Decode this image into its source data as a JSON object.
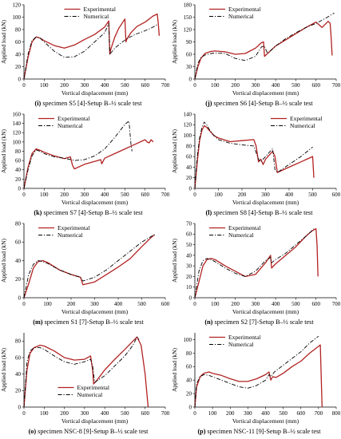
{
  "figure": {
    "legend_experimental": "Experimental",
    "legend_numerical": "Numerical",
    "colors": {
      "experimental": "#b22222",
      "numerical": "#000000"
    }
  },
  "chart_data": [
    {
      "type": "line",
      "letter": "(i)",
      "caption": " specimen S5 [4]-Setup B–½ scale test",
      "xlabel": "Vertical displacement (mm)",
      "ylabel": "Applied load (kN)",
      "xlim": [
        0,
        700
      ],
      "ylim": [
        0,
        120
      ],
      "xticks": [
        0,
        100,
        200,
        300,
        400,
        500,
        600,
        700
      ],
      "yticks": [
        0,
        20,
        40,
        60,
        80,
        100,
        120
      ],
      "legend": "top-center",
      "series": [
        {
          "name": "Experimental",
          "style": "solid",
          "x": [
            0,
            20,
            40,
            60,
            80,
            100,
            150,
            200,
            250,
            300,
            350,
            400,
            420,
            425,
            430,
            450,
            470,
            490,
            500,
            505,
            510,
            530,
            560,
            600,
            640,
            660,
            665,
            670
          ],
          "y": [
            0,
            35,
            60,
            68,
            66,
            62,
            54,
            50,
            55,
            64,
            72,
            84,
            94,
            40,
            48,
            68,
            82,
            92,
            97,
            60,
            65,
            75,
            85,
            92,
            102,
            105,
            90,
            70
          ]
        },
        {
          "name": "Numerical",
          "style": "dashdot",
          "x": [
            0,
            20,
            40,
            60,
            80,
            100,
            150,
            200,
            250,
            300,
            350,
            400,
            420,
            425,
            430,
            450,
            480,
            500,
            520,
            550,
            600,
            640,
            660
          ],
          "y": [
            0,
            40,
            62,
            68,
            66,
            60,
            45,
            35,
            36,
            45,
            60,
            75,
            90,
            40,
            42,
            50,
            58,
            63,
            67,
            72,
            78,
            84,
            88
          ]
        }
      ]
    },
    {
      "type": "line",
      "letter": "(j)",
      "caption": " specimen S6 [4]-Setup B–½ scale test",
      "xlabel": "Vertical displacement (mm)",
      "ylabel": "Applied load (kN)",
      "xlim": [
        0,
        700
      ],
      "ylim": [
        0,
        180
      ],
      "xticks": [
        0,
        100,
        200,
        300,
        400,
        500,
        600,
        700
      ],
      "yticks": [
        0,
        30,
        60,
        90,
        120,
        150,
        180
      ],
      "legend": "top-left",
      "series": [
        {
          "name": "Experimental",
          "style": "solid",
          "x": [
            0,
            15,
            30,
            50,
            80,
            100,
            150,
            200,
            250,
            300,
            330,
            340,
            345,
            360,
            400,
            450,
            500,
            550,
            600,
            630,
            660,
            670,
            675,
            680
          ],
          "y": [
            0,
            30,
            50,
            62,
            67,
            68,
            66,
            60,
            62,
            75,
            88,
            90,
            55,
            62,
            80,
            95,
            110,
            125,
            138,
            125,
            140,
            135,
            100,
            57
          ]
        },
        {
          "name": "Numerical",
          "style": "dashdot",
          "x": [
            0,
            15,
            30,
            50,
            80,
            100,
            150,
            200,
            250,
            300,
            330,
            345,
            360,
            400,
            450,
            500,
            550,
            600,
            650,
            690
          ],
          "y": [
            0,
            38,
            52,
            58,
            62,
            63,
            62,
            50,
            45,
            55,
            78,
            80,
            62,
            80,
            98,
            112,
            125,
            135,
            148,
            160
          ]
        }
      ]
    },
    {
      "type": "line",
      "letter": "(k)",
      "caption": " specimen S7 [4]-Setup B–½ scale test",
      "xlabel": "Vertical displacement (mm)",
      "ylabel": "Applied load (kN)",
      "xlim": [
        0,
        700
      ],
      "ylim": [
        0,
        160
      ],
      "xticks": [
        0,
        100,
        200,
        300,
        400,
        500,
        600,
        700
      ],
      "yticks": [
        0,
        20,
        40,
        60,
        80,
        100,
        120,
        140,
        160
      ],
      "legend": "top-left",
      "series": [
        {
          "name": "Experimental",
          "style": "solid",
          "x": [
            0,
            20,
            40,
            60,
            80,
            100,
            150,
            200,
            230,
            240,
            250,
            300,
            350,
            380,
            385,
            400,
            450,
            500,
            550,
            600,
            610,
            620,
            630,
            640
          ],
          "y": [
            0,
            45,
            75,
            85,
            82,
            78,
            70,
            64,
            68,
            50,
            42,
            52,
            58,
            62,
            53,
            65,
            75,
            85,
            95,
            105,
            100,
            98,
            105,
            100
          ]
        },
        {
          "name": "Numerical",
          "style": "dashdot",
          "x": [
            0,
            20,
            40,
            60,
            80,
            100,
            150,
            200,
            250,
            300,
            350,
            400,
            450,
            500,
            520,
            530,
            535
          ],
          "y": [
            0,
            40,
            70,
            83,
            80,
            75,
            68,
            65,
            60,
            62,
            70,
            85,
            110,
            138,
            145,
            95,
            80
          ]
        }
      ]
    },
    {
      "type": "line",
      "letter": "(l)",
      "caption": " specimen S8 [4]-Setup B–½ scale test",
      "xlabel": "Vertical displacement (mm)",
      "ylabel": "Applied load (kN)",
      "xlim": [
        0,
        600
      ],
      "ylim": [
        0,
        140
      ],
      "xticks": [
        0,
        100,
        200,
        300,
        400,
        500,
        600
      ],
      "yticks": [
        0,
        20,
        40,
        60,
        80,
        100,
        120,
        140
      ],
      "legend": "top-right",
      "series": [
        {
          "name": "Experimental",
          "style": "solid",
          "x": [
            0,
            10,
            20,
            30,
            40,
            50,
            60,
            80,
            100,
            150,
            200,
            250,
            260,
            270,
            280,
            290,
            300,
            320,
            330,
            340,
            350,
            400,
            450,
            500,
            505
          ],
          "y": [
            0,
            50,
            90,
            110,
            118,
            115,
            110,
            100,
            95,
            88,
            90,
            92,
            80,
            50,
            55,
            45,
            55,
            65,
            70,
            60,
            30,
            40,
            50,
            60,
            20
          ]
        },
        {
          "name": "Numerical",
          "style": "dashdot",
          "x": [
            0,
            10,
            20,
            30,
            40,
            50,
            60,
            80,
            100,
            150,
            200,
            250,
            270,
            280,
            300,
            320,
            330,
            340,
            350,
            400,
            450,
            500
          ],
          "y": [
            0,
            60,
            95,
            115,
            125,
            120,
            112,
            100,
            92,
            85,
            82,
            80,
            55,
            50,
            60,
            70,
            75,
            35,
            30,
            45,
            60,
            78
          ]
        }
      ]
    },
    {
      "type": "line",
      "letter": "(m)",
      "caption": " specimen S1 [7]-Setup B–½ scale test",
      "xlabel": "Vertical displacement (mm)",
      "ylabel": "Applied load (kN)",
      "xlim": [
        0,
        600
      ],
      "ylim": [
        0,
        80
      ],
      "xticks": [
        0,
        100,
        200,
        300,
        400,
        500,
        600
      ],
      "yticks": [
        0,
        20,
        40,
        60,
        80
      ],
      "legend": "top-left",
      "series": [
        {
          "name": "Experimental",
          "style": "solid",
          "x": [
            0,
            20,
            40,
            60,
            80,
            100,
            150,
            200,
            240,
            250,
            300,
            350,
            400,
            450,
            500,
            540,
            555
          ],
          "y": [
            0,
            15,
            32,
            39,
            40,
            38,
            30,
            25,
            22,
            14,
            17,
            25,
            33,
            42,
            55,
            65,
            68
          ]
        },
        {
          "name": "Numerical",
          "style": "dashdot",
          "x": [
            0,
            20,
            40,
            60,
            80,
            100,
            150,
            200,
            240,
            250,
            300,
            350,
            400,
            450,
            500,
            540,
            555
          ],
          "y": [
            0,
            25,
            36,
            40,
            39,
            37,
            30,
            25,
            22,
            18,
            22,
            30,
            40,
            50,
            60,
            66,
            68
          ]
        }
      ]
    },
    {
      "type": "line",
      "letter": "(n)",
      "caption": " specimen S2 [7]-Setup B–½ scale test",
      "xlabel": "Vertical displacement (mm)",
      "ylabel": "Applied load (kN)",
      "xlim": [
        0,
        700
      ],
      "ylim": [
        0,
        70
      ],
      "xticks": [
        0,
        100,
        200,
        300,
        400,
        500,
        600,
        700
      ],
      "yticks": [
        0,
        10,
        20,
        30,
        40,
        50,
        60,
        70
      ],
      "legend": "top-left",
      "series": [
        {
          "name": "Experimental",
          "style": "solid",
          "x": [
            0,
            20,
            40,
            60,
            80,
            100,
            150,
            200,
            250,
            300,
            350,
            375,
            380,
            400,
            450,
            500,
            550,
            580,
            600,
            605,
            610
          ],
          "y": [
            0,
            15,
            30,
            36,
            37,
            36,
            30,
            25,
            20,
            22,
            33,
            40,
            28,
            32,
            40,
            48,
            58,
            63,
            65,
            50,
            20
          ]
        },
        {
          "name": "Numerical",
          "style": "dashdot",
          "x": [
            0,
            20,
            40,
            60,
            80,
            100,
            150,
            200,
            250,
            300,
            350,
            375,
            380,
            400,
            450,
            500,
            550,
            590
          ],
          "y": [
            0,
            25,
            35,
            37,
            36,
            34,
            28,
            23,
            20,
            25,
            35,
            38,
            33,
            36,
            42,
            50,
            58,
            65
          ]
        }
      ]
    },
    {
      "type": "line",
      "letter": "(o)",
      "caption": " specimen NSC-8 [9]-Setup B–½ scale test",
      "xlabel": "Vertical displacement (mm)",
      "ylabel": "Applied load (kN)",
      "xlim": [
        0,
        700
      ],
      "ylim": [
        0,
        90
      ],
      "xticks": [
        0,
        100,
        200,
        300,
        400,
        500,
        600,
        700
      ],
      "yticks": [
        0,
        20,
        40,
        60,
        80
      ],
      "legend": "bottom-center",
      "series": [
        {
          "name": "Experimental",
          "style": "solid",
          "x": [
            0,
            15,
            30,
            50,
            80,
            100,
            150,
            200,
            250,
            300,
            330,
            340,
            345,
            360,
            400,
            450,
            500,
            540,
            560,
            580,
            600,
            615
          ],
          "y": [
            0,
            45,
            65,
            72,
            75,
            74,
            68,
            60,
            57,
            58,
            62,
            45,
            28,
            32,
            45,
            58,
            70,
            80,
            85,
            75,
            40,
            0
          ]
        },
        {
          "name": "Numerical",
          "style": "dashdot",
          "x": [
            0,
            15,
            30,
            50,
            80,
            100,
            150,
            200,
            250,
            300,
            330,
            340,
            350,
            400,
            450,
            500,
            540,
            560,
            570
          ],
          "y": [
            0,
            55,
            68,
            72,
            72,
            70,
            62,
            55,
            52,
            55,
            58,
            50,
            30,
            38,
            50,
            62,
            75,
            85,
            82
          ]
        }
      ]
    },
    {
      "type": "line",
      "letter": "(p)",
      "caption": " specimen NSC-11 [9]-Setup B–½ scale test",
      "xlabel": "Vertical displacement (mm)",
      "ylabel": "Applied load (kN)",
      "xlim": [
        0,
        800
      ],
      "ylim": [
        0,
        110
      ],
      "xticks": [
        0,
        100,
        200,
        300,
        400,
        500,
        600,
        700,
        800
      ],
      "yticks": [
        0,
        20,
        40,
        60,
        80,
        100
      ],
      "legend": "top-left",
      "series": [
        {
          "name": "Experimental",
          "style": "solid",
          "x": [
            0,
            10,
            30,
            50,
            80,
            100,
            150,
            200,
            250,
            300,
            350,
            400,
            420,
            430,
            440,
            460,
            500,
            550,
            600,
            650,
            700,
            710,
            720
          ],
          "y": [
            0,
            30,
            45,
            50,
            52,
            50,
            47,
            42,
            38,
            38,
            42,
            48,
            52,
            40,
            45,
            44,
            50,
            60,
            68,
            80,
            90,
            92,
            0
          ]
        },
        {
          "name": "Numerical",
          "style": "dashdot",
          "x": [
            0,
            10,
            30,
            50,
            80,
            100,
            150,
            200,
            250,
            300,
            350,
            400,
            420,
            430,
            450,
            500,
            550,
            600,
            650,
            700
          ],
          "y": [
            0,
            35,
            45,
            48,
            47,
            45,
            40,
            35,
            30,
            28,
            32,
            40,
            48,
            45,
            52,
            62,
            72,
            82,
            95,
            105
          ]
        }
      ]
    }
  ]
}
